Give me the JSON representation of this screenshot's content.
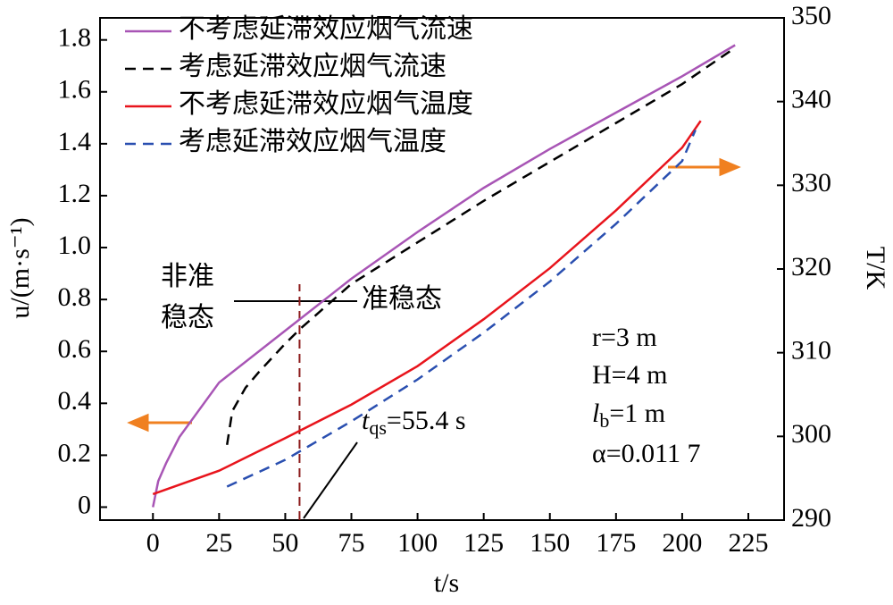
{
  "chart_data": {
    "type": "line",
    "xlabel": "t/s",
    "ylabel": "u/(m·s⁻¹)",
    "y2label": "T/K",
    "xlim": [
      -20,
      238.5
    ],
    "xticks": [
      0,
      25,
      50,
      75,
      100,
      125,
      150,
      175,
      200,
      225
    ],
    "ylim": [
      -0.05,
      1.885
    ],
    "yticks": [
      0,
      0.2,
      0.4,
      0.6,
      0.8,
      {
        "value": 1,
        "label": "1.0"
      },
      1.2,
      1.4,
      1.6,
      1.8
    ],
    "y2lim": [
      290,
      350
    ],
    "y2ticks": [
      290,
      300,
      310,
      320,
      330,
      340,
      350
    ],
    "legend": "upper left",
    "series": [
      {
        "name": "不考虑延滞效应烟气流速",
        "color": "#a855b5",
        "dash": false,
        "x": [
          0,
          2,
          5,
          10,
          25,
          50,
          75,
          100,
          125,
          150,
          175,
          200,
          220
        ],
        "values": [
          0,
          0.1,
          0.17,
          0.27,
          0.48,
          0.68,
          0.88,
          1.06,
          1.23,
          1.38,
          1.52,
          1.66,
          1.78
        ]
      },
      {
        "name": "考虑延滞效应烟气流速",
        "color": "#000000",
        "dash": true,
        "x": [
          28,
          30,
          35,
          40,
          50,
          56,
          75,
          100,
          125,
          150,
          175,
          200,
          220
        ],
        "values": [
          0.24,
          0.37,
          0.46,
          0.52,
          0.63,
          0.69,
          0.86,
          1.02,
          1.18,
          1.33,
          1.48,
          1.63,
          1.77
        ]
      },
      {
        "name": "不考虑延滞效应烟气温度",
        "color": "#e8141c",
        "dash": false,
        "axis": "y2",
        "x": [
          0,
          25,
          50,
          75,
          100,
          125,
          150,
          175,
          200,
          207
        ],
        "values": [
          293.1,
          295.9,
          299.8,
          303.8,
          308.4,
          314.0,
          320.1,
          327.0,
          334.5,
          337.7
        ]
      },
      {
        "name": "考虑延滞效应烟气温度",
        "color": "#2a4fb0",
        "dash": true,
        "axis": "y2",
        "x": [
          28,
          50,
          75,
          100,
          125,
          150,
          175,
          200,
          205
        ],
        "values": [
          294.0,
          297.2,
          301.8,
          306.8,
          312.4,
          318.5,
          325.4,
          332.9,
          336.6
        ]
      }
    ],
    "marker_x": 55.4,
    "annotations": {
      "unsteady": [
        "非准",
        "稳态"
      ],
      "steady": "准稳态",
      "tqs": {
        "symbol": "t",
        "sub": "qs",
        "text": "=55.4 s"
      },
      "params": [
        "r=3 m",
        "H=4 m",
        {
          "symbol": "l",
          "sub": "b",
          "text": "=1 m"
        },
        "α=0.011 7"
      ]
    }
  }
}
